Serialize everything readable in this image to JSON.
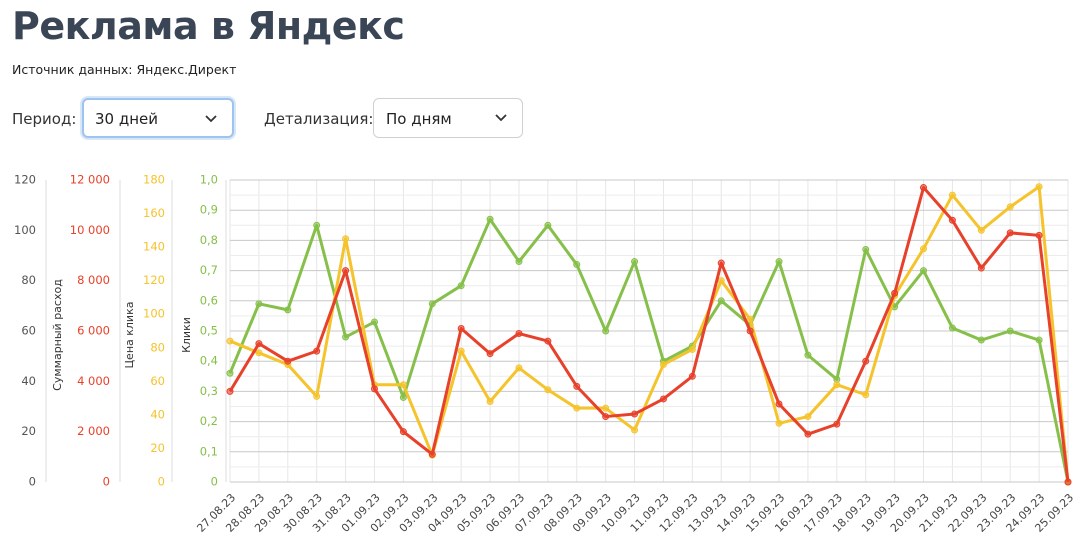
{
  "header": {
    "title": "Реклама в Яндекс",
    "source": "Источник данных: Яндекс.Директ"
  },
  "controls": [
    {
      "label": "Период:",
      "value": "30 дней"
    },
    {
      "label": "Детализация:",
      "value": "По дням"
    }
  ],
  "chart_data": {
    "type": "line",
    "categories": [
      "27.08.23",
      "28.08.23",
      "29.08.23",
      "30.08.23",
      "31.08.23",
      "01.09.23",
      "02.09.23",
      "03.09.23",
      "04.09.23",
      "05.09.23",
      "06.09.23",
      "07.09.23",
      "08.09.23",
      "09.09.23",
      "10.09.23",
      "11.09.23",
      "12.09.23",
      "13.09.23",
      "14.09.23",
      "15.09.23",
      "16.09.23",
      "17.09.23",
      "18.09.23",
      "19.09.23",
      "20.09.23",
      "21.09.23",
      "22.09.23",
      "23.09.23",
      "24.09.23",
      "25.09.23"
    ],
    "axes": [
      {
        "color": "#555555",
        "ylim": [
          0,
          120
        ],
        "yticks": [
          0,
          20,
          40,
          60,
          80,
          100,
          120
        ]
      },
      {
        "label": "Суммарный расход",
        "color": "#e8412b",
        "ylim": [
          0,
          12000
        ],
        "yticks": [
          0,
          {
            "value": 2000,
            "label": "2 000"
          },
          {
            "value": 4000,
            "label": "4 000"
          },
          {
            "value": 6000,
            "label": "6 000"
          },
          {
            "value": 8000,
            "label": "8 000"
          },
          {
            "value": 10000,
            "label": "10 000"
          },
          {
            "value": 12000,
            "label": "12 000"
          }
        ]
      },
      {
        "label": "Цена клика",
        "color": "#f5c32c",
        "ylim": [
          0,
          180
        ],
        "yticks": [
          0,
          20,
          40,
          60,
          80,
          100,
          120,
          140,
          160,
          180
        ]
      },
      {
        "label": "Клики",
        "color": "#86c04a",
        "ylim": [
          0,
          1
        ],
        "grid": true,
        "yticks": [
          0,
          {
            "value": 0.1,
            "label": "0,1"
          },
          {
            "value": 0.2,
            "label": "0,2"
          },
          {
            "value": 0.3,
            "label": "0,3"
          },
          {
            "value": 0.4,
            "label": "0,4"
          },
          {
            "value": 0.5,
            "label": "0,5"
          },
          {
            "value": 0.6,
            "label": "0,6"
          },
          {
            "value": 0.7,
            "label": "0,7"
          },
          {
            "value": 0.8,
            "label": "0,8"
          },
          {
            "value": 0.9,
            "label": "0,9"
          },
          {
            "value": 1,
            "label": "1,0"
          }
        ]
      }
    ],
    "series": [
      {
        "color": "#86c04a",
        "axis": 3,
        "values": [
          0.36,
          0.59,
          0.57,
          0.85,
          0.48,
          0.53,
          0.28,
          0.59,
          0.65,
          0.87,
          0.73,
          0.85,
          0.72,
          0.5,
          0.73,
          0.4,
          0.45,
          0.6,
          0.52,
          0.73,
          0.42,
          0.34,
          0.77,
          0.58,
          0.7,
          0.51,
          0.47,
          0.5,
          0.47,
          0
        ]
      },
      {
        "color": "#f5c32c",
        "axis": 2,
        "values": [
          84,
          77,
          70,
          51,
          145,
          58,
          58,
          16,
          78,
          48,
          68,
          55,
          44,
          44,
          31,
          70,
          79,
          120,
          97,
          35,
          39,
          58,
          52,
          111,
          139,
          171,
          150,
          164,
          176,
          0
        ]
      },
      {
        "color": "#e8412b",
        "axis": 1,
        "values": [
          3600,
          5500,
          4800,
          5200,
          8400,
          3700,
          2000,
          1100,
          6100,
          5100,
          5900,
          5600,
          3800,
          2600,
          2700,
          3300,
          4200,
          8700,
          6000,
          3100,
          1900,
          2300,
          4800,
          7500,
          11700,
          10400,
          8500,
          9900,
          9800,
          0
        ]
      }
    ]
  }
}
